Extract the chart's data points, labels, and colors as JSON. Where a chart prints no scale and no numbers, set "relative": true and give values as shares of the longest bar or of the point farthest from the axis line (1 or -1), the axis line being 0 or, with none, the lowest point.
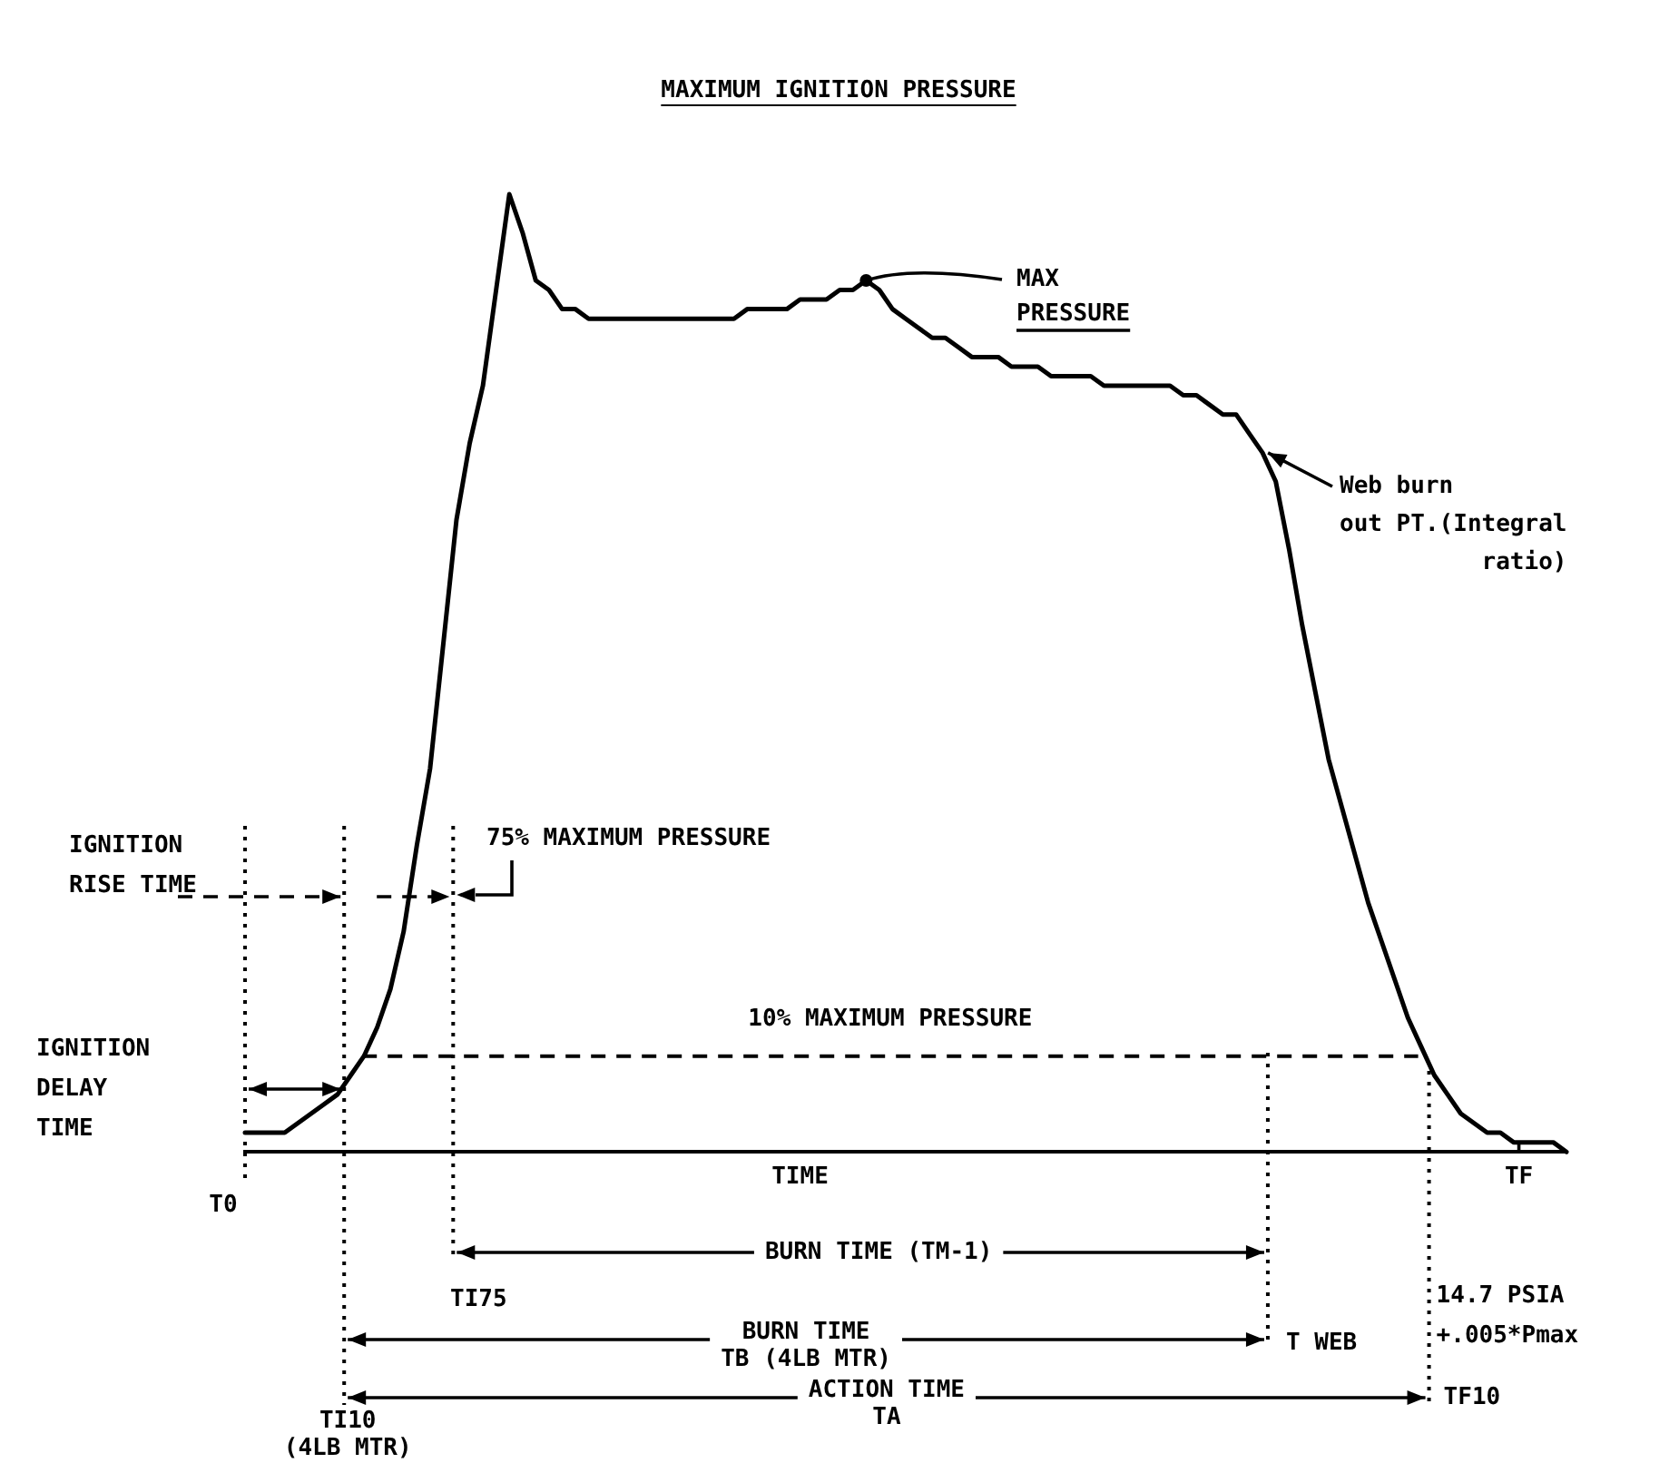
{
  "chart_data": {
    "type": "line",
    "title": "MAXIMUM IGNITION PRESSURE",
    "xlabel": "TIME",
    "relative": true,
    "marker": "none",
    "line_style": "solid",
    "categories": [
      null,
      null,
      null,
      null,
      null,
      null,
      null,
      null,
      null,
      null,
      null,
      null,
      null,
      null,
      null,
      null,
      null,
      null,
      null,
      null,
      null,
      null,
      null,
      null,
      null,
      null,
      null,
      null,
      null,
      null,
      null,
      null,
      null,
      null,
      null,
      null,
      null,
      null,
      null,
      null,
      null,
      null,
      null,
      null,
      null,
      null,
      null,
      null,
      null,
      null,
      null,
      null,
      null,
      null,
      null,
      null,
      null,
      null,
      null,
      null,
      null,
      null,
      null,
      null,
      null,
      null,
      null,
      null,
      null,
      null,
      null,
      null,
      null,
      null,
      null,
      null,
      null,
      null,
      null,
      null,
      null,
      null,
      null,
      null,
      null,
      null,
      null,
      null,
      null,
      null,
      null,
      null,
      null,
      null,
      null,
      null,
      null,
      null,
      null,
      null,
      null
    ],
    "series": [
      {
        "color": "#000000",
        "values": [
          0.02,
          0.02,
          0.02,
          0.02,
          0.03,
          0.04,
          0.05,
          0.06,
          0.08,
          0.1,
          0.13,
          0.17,
          0.23,
          0.32,
          0.4,
          0.53,
          0.66,
          0.74,
          0.8,
          0.9,
          1.0,
          0.96,
          0.91,
          0.9,
          0.88,
          0.88,
          0.87,
          0.87,
          0.87,
          0.87,
          0.87,
          0.87,
          0.87,
          0.87,
          0.87,
          0.87,
          0.87,
          0.87,
          0.88,
          0.88,
          0.88,
          0.88,
          0.89,
          0.89,
          0.89,
          0.9,
          0.9,
          0.91,
          0.9,
          0.88,
          0.87,
          0.86,
          0.85,
          0.85,
          0.84,
          0.83,
          0.83,
          0.83,
          0.82,
          0.82,
          0.82,
          0.81,
          0.81,
          0.81,
          0.81,
          0.8,
          0.8,
          0.8,
          0.8,
          0.8,
          0.8,
          0.79,
          0.79,
          0.78,
          0.77,
          0.77,
          0.75,
          0.73,
          0.7,
          0.63,
          0.55,
          0.48,
          0.41,
          0.36,
          0.31,
          0.26,
          0.22,
          0.18,
          0.14,
          0.11,
          0.08,
          0.06,
          0.04,
          0.03,
          0.02,
          0.02,
          0.01,
          0.01,
          0.01,
          0.01,
          0.0
        ]
      }
    ],
    "ref_lines": [
      {
        "axis": "y",
        "value": 0.1,
        "label": "10% MAXIMUM PRESSURE",
        "line_style": "dashed"
      }
    ],
    "annotations": [
      "IGNITION\nRISE TIME",
      "IGNITION\nDELAY\nTIME",
      "75% MAXIMUM PRESSURE",
      "MAX\nPRESSURE",
      "Web burn\nout PT.(Integral\nratio)",
      "BURN TIME (TM-1)",
      "BURN TIME\nTB (4LB MTR)",
      "ACTION TIME\nTA",
      "TF",
      "14.7 PSIA\n+.005*Pmax",
      "T0",
      "TI10\n(4LB MTR)",
      "TI75",
      "T WEB",
      "TF10"
    ]
  }
}
